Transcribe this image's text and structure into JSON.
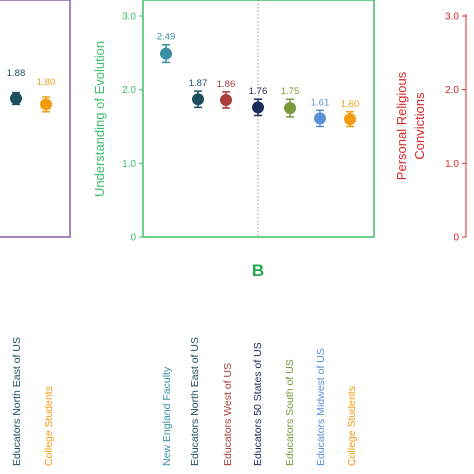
{
  "colors": {
    "panel_a_frame": "#8b5fa8",
    "panel_b_frame": "#3cbf6a",
    "right_axis": "#d62728"
  },
  "left_partial": {
    "points": [
      {
        "label": "Educators North East of US",
        "value": 1.88,
        "err": 0.08,
        "color": "#1f4e5f"
      },
      {
        "label": "College Students",
        "value": 1.8,
        "err": 0.1,
        "color": "#f39c12"
      }
    ],
    "value_labels": [
      "1.88",
      "1.80"
    ]
  },
  "chart_data": {
    "type": "scatter",
    "ylabel": "Understanding of Evolution",
    "panel_label": "B",
    "ylim": [
      0,
      3.0
    ],
    "yticks": [
      "0",
      "1.0",
      "2.0",
      "3.0"
    ],
    "categories": [
      "New England Faculty",
      "Educators North East of US",
      "Educators West of US",
      "Educators 50 States of US",
      "Educators South of US",
      "Educators Midwest of US",
      "College Students"
    ],
    "values": [
      2.49,
      1.87,
      1.86,
      1.76,
      1.75,
      1.61,
      1.6
    ],
    "errors": [
      0.12,
      0.11,
      0.11,
      0.11,
      0.12,
      0.11,
      0.1
    ],
    "value_labels": [
      "2.49",
      "1.87",
      "1.86",
      "1.76",
      "1.75",
      "1.61",
      "1.60"
    ],
    "colors": [
      "#3a8fa3",
      "#1f4e5f",
      "#a93c3c",
      "#1a2a5a",
      "#7a9a3a",
      "#5b8fd6",
      "#f39c12"
    ]
  },
  "right_partial": {
    "ylabel_line1": "Personal Religious",
    "ylabel_line2": "Convictions",
    "yticks": [
      "1.0",
      "2.0",
      "3.0"
    ],
    "first_tick": "0"
  }
}
